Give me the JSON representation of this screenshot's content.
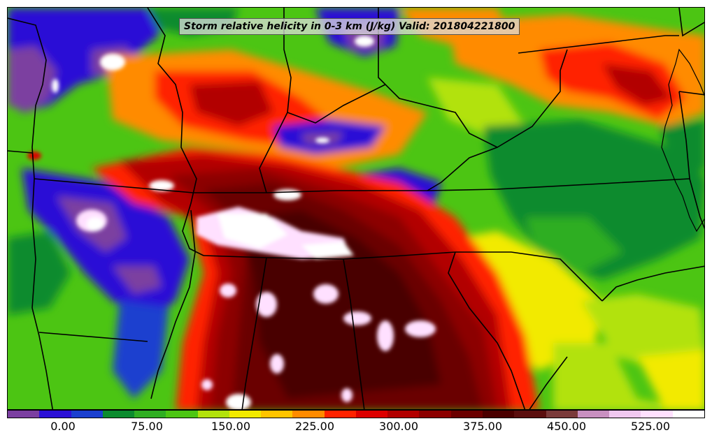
{
  "title": "Storm relative helicity in 0-3 km (J/kg) Valid: 201804221800",
  "colorbar": {
    "colors": [
      "#7b3fa0",
      "#2b10d6",
      "#1a3fcf",
      "#0b8b2e",
      "#2fae22",
      "#4cc513",
      "#b2e20c",
      "#f2ea00",
      "#ffc400",
      "#ff8b00",
      "#ff2200",
      "#dd0000",
      "#b20000",
      "#8c0000",
      "#6a0000",
      "#4a0000",
      "#5a0e0e",
      "#7a3a3a",
      "#c890c0",
      "#f0c8f0",
      "#ffe0ff",
      "#ffffff"
    ],
    "ticks": [
      {
        "label": "0.00",
        "index": 2
      },
      {
        "label": "75.00",
        "index": 5
      },
      {
        "label": "150.00",
        "index": 8
      },
      {
        "label": "225.00",
        "index": 11
      },
      {
        "label": "300.00",
        "index": 14
      },
      {
        "label": "375.00",
        "index": 17
      },
      {
        "label": "450.00",
        "index": 20
      },
      {
        "label": "525.00",
        "index": 23
      }
    ]
  }
}
